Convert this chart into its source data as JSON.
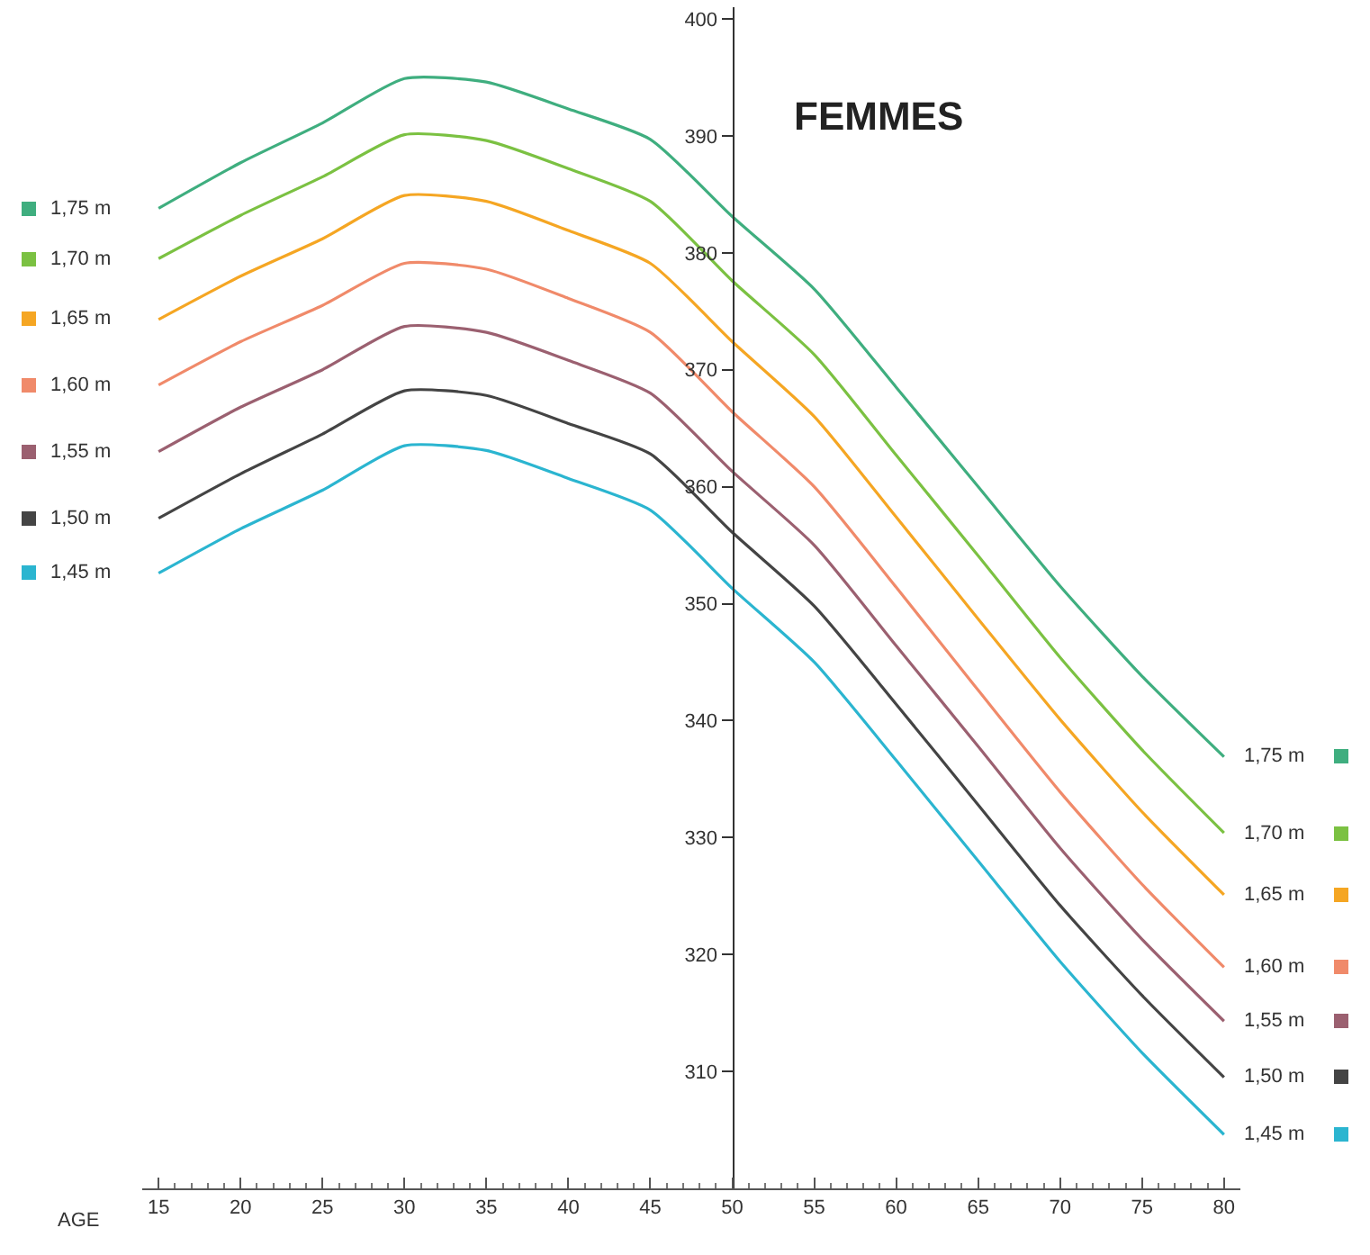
{
  "chart_data": {
    "type": "line",
    "title": "FEMMES",
    "xlabel": "AGE",
    "legend": "left",
    "x": [
      15,
      20,
      25,
      30,
      35,
      40,
      45,
      50,
      55,
      60,
      65,
      70,
      75,
      80
    ],
    "xlim": [
      14,
      81
    ],
    "xticks": [
      15,
      20,
      25,
      30,
      35,
      40,
      45,
      50,
      55,
      60,
      65,
      70,
      75,
      80
    ],
    "ylim": [
      300,
      401
    ],
    "yticks": [
      310,
      320,
      330,
      340,
      350,
      360,
      370,
      380,
      390,
      400
    ],
    "series": [
      {
        "name": "1,75 m",
        "color": "#3fae7f",
        "values": [
          383.8,
          387.7,
          391.1,
          394.9,
          394.6,
          392.3,
          389.7,
          383.1,
          376.9,
          368.5,
          360.0,
          351.5,
          343.8,
          336.9
        ]
      },
      {
        "name": "1,70 m",
        "color": "#7bc142",
        "values": [
          379.5,
          383.2,
          386.5,
          390.1,
          389.6,
          387.2,
          384.4,
          377.6,
          371.3,
          362.7,
          354.1,
          345.4,
          337.5,
          330.4
        ]
      },
      {
        "name": "1,65 m",
        "color": "#f5a623",
        "values": [
          374.3,
          378.0,
          381.2,
          384.9,
          384.4,
          381.9,
          379.1,
          372.4,
          366.0,
          357.4,
          348.7,
          340.1,
          332.2,
          325.1
        ]
      },
      {
        "name": "1,60 m",
        "color": "#f08a6a",
        "values": [
          368.7,
          372.4,
          375.5,
          379.1,
          378.6,
          376.1,
          373.2,
          366.4,
          360.0,
          351.4,
          342.6,
          333.9,
          326.0,
          318.9
        ]
      },
      {
        "name": "1,55 m",
        "color": "#9b6070",
        "values": [
          363.0,
          366.8,
          370.0,
          373.7,
          373.2,
          370.8,
          368.0,
          361.3,
          355.0,
          346.4,
          337.8,
          329.1,
          321.3,
          314.3
        ]
      },
      {
        "name": "1,50 m",
        "color": "#444444",
        "values": [
          357.3,
          361.1,
          364.5,
          368.2,
          367.8,
          365.4,
          362.8,
          356.1,
          349.8,
          341.4,
          332.8,
          324.2,
          316.5,
          309.5
        ]
      },
      {
        "name": "1,45 m",
        "color": "#2bb5d0",
        "values": [
          352.6,
          356.4,
          359.7,
          363.5,
          363.1,
          360.7,
          358.0,
          351.3,
          345.0,
          336.6,
          328.0,
          319.4,
          311.6,
          304.6
        ]
      }
    ]
  }
}
